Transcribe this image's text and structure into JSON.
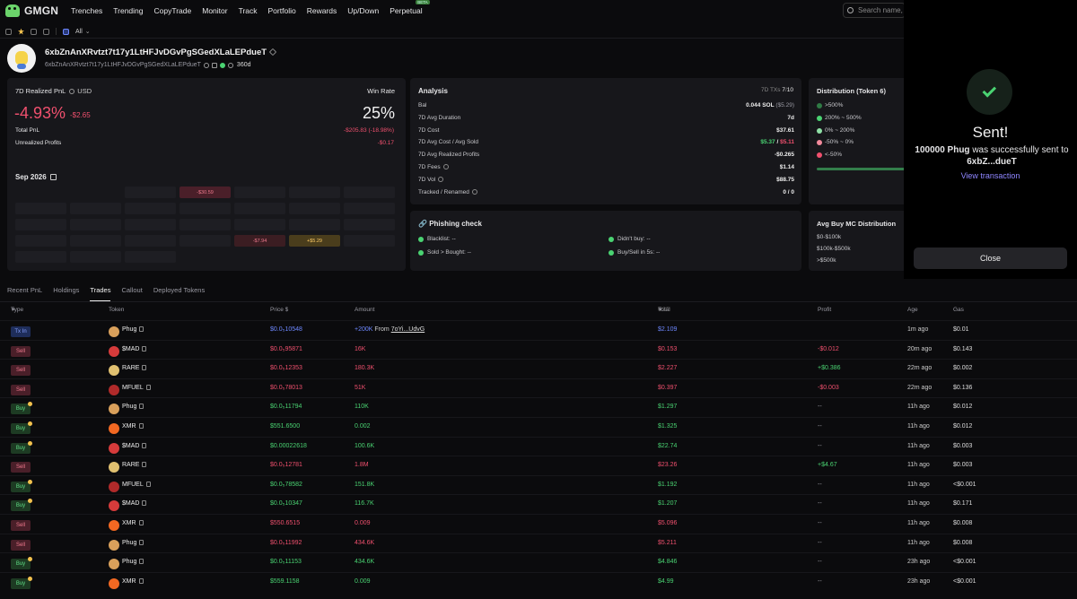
{
  "nav": {
    "logo": "GMGN",
    "items": [
      "Trenches",
      "Trending",
      "CopyTrade",
      "Monitor",
      "Track",
      "Portfolio",
      "Rewards",
      "Up/Down",
      "Perpetual"
    ],
    "perpetual_badge": "BETA",
    "search_placeholder": "Search name, C"
  },
  "subbar": {
    "filter": "All"
  },
  "wallet": {
    "name": "6xbZnAnXRvtzt7t17y1LtHFJvDGvPgSGedXLaLEPdueT",
    "address": "6xbZnAnXRvtzt7t17y1LtHFJvDGvPgSGedXLaLEPdueT",
    "age": "360d"
  },
  "pnl": {
    "title": "7D Realized PnL",
    "currency": "USD",
    "percent": "-4.93%",
    "amount": "-$2.65",
    "winrate_label": "Win Rate",
    "winrate": "25%",
    "total_label": "Total PnL",
    "total_value": "-$205.83 (-18.98%)",
    "unrealized_label": "Unrealized Profits",
    "unrealized_value": "-$0.17"
  },
  "calendar": {
    "title": "Sep 2026",
    "cells": [
      {
        "kind": "empty",
        "text": ""
      },
      {
        "kind": "empty",
        "text": ""
      },
      {
        "kind": "day",
        "text": ""
      },
      {
        "kind": "neg",
        "text": "-$30.59"
      },
      {
        "kind": "day",
        "text": ""
      },
      {
        "kind": "day",
        "text": ""
      },
      {
        "kind": "day",
        "text": ""
      },
      {
        "kind": "day",
        "text": ""
      },
      {
        "kind": "day",
        "text": ""
      },
      {
        "kind": "day",
        "text": ""
      },
      {
        "kind": "day",
        "text": ""
      },
      {
        "kind": "day",
        "text": ""
      },
      {
        "kind": "day",
        "text": ""
      },
      {
        "kind": "day",
        "text": ""
      },
      {
        "kind": "day",
        "text": ""
      },
      {
        "kind": "day",
        "text": ""
      },
      {
        "kind": "day",
        "text": ""
      },
      {
        "kind": "day",
        "text": ""
      },
      {
        "kind": "day",
        "text": ""
      },
      {
        "kind": "day",
        "text": ""
      },
      {
        "kind": "day",
        "text": ""
      },
      {
        "kind": "day",
        "text": ""
      },
      {
        "kind": "day",
        "text": ""
      },
      {
        "kind": "day",
        "text": ""
      },
      {
        "kind": "day",
        "text": ""
      },
      {
        "kind": "negd",
        "text": "-$7.94"
      },
      {
        "kind": "pos",
        "text": "+$5.29"
      },
      {
        "kind": "day",
        "text": ""
      },
      {
        "kind": "day",
        "text": ""
      },
      {
        "kind": "day",
        "text": ""
      },
      {
        "kind": "day",
        "text": ""
      },
      {
        "kind": "empty",
        "text": ""
      },
      {
        "kind": "empty",
        "text": ""
      },
      {
        "kind": "empty",
        "text": ""
      },
      {
        "kind": "empty",
        "text": ""
      }
    ]
  },
  "analysis": {
    "title": "Analysis",
    "tx_prefix": "7D TXs",
    "tx_buy": "7",
    "tx_sell": "10",
    "rows": [
      {
        "label": "Bal",
        "value": "0.044 SOL",
        "extra": "($5.29)"
      },
      {
        "label": "7D Avg Duration",
        "value": "7d"
      },
      {
        "label": "7D Cost",
        "value": "$37.61"
      },
      {
        "label": "7D Avg Cost / Avg Sold",
        "value_g": "$5.37",
        "value_r": "$5.11"
      },
      {
        "label": "7D Avg Realized Profits",
        "value_r": "-$0.265"
      },
      {
        "label": "7D Fees",
        "value": "$1.14"
      },
      {
        "label": "7D Vol",
        "value": "$88.75"
      },
      {
        "label": "Tracked / Renamed",
        "value": "0 / 0"
      }
    ]
  },
  "phishing": {
    "title": "Phishing check",
    "items": [
      {
        "label": "Blacklist:",
        "value": "--"
      },
      {
        "label": "Didn't buy:",
        "value": "--"
      },
      {
        "label": "Sold > Bought:",
        "value": "--"
      },
      {
        "label": "Buy/Sell in 5s:",
        "value": "--"
      }
    ]
  },
  "distribution": {
    "title": "Distribution (Token 6)",
    "items": [
      {
        "label": ">500%",
        "color": "#2f7a45"
      },
      {
        "label": "200% ~ 500%",
        "color": "#4ad372"
      },
      {
        "label": "0% ~ 200%",
        "color": "#8fe0a6"
      },
      {
        "label": "-50% ~ 0%",
        "color": "#f28a9c"
      },
      {
        "label": "<-50%",
        "color": "#f0506e"
      }
    ]
  },
  "avg_mc": {
    "title": "Avg Buy MC Distribution",
    "items": [
      "$0-$100k",
      "$100k-$500k",
      ">$500k"
    ]
  },
  "tabs": [
    "Recent PnL",
    "Holdings",
    "Trades",
    "Callout",
    "Deployed Tokens"
  ],
  "table": {
    "headers": {
      "type": "Type",
      "token": "Token",
      "price": "Price $",
      "amount": "Amount",
      "total": "Total",
      "total_unit": "USD",
      "profit": "Profit",
      "age": "Age",
      "gas": "Gas"
    },
    "rows": [
      {
        "type": "Tx In",
        "kind": "txin",
        "token": "Phug",
        "icon": "#d9a05b",
        "price": "$0.0₅10548",
        "amount": "+200K",
        "from_label": "From",
        "from": "7oYi...UdvG",
        "total": "$2.109",
        "total_color": "blue",
        "profit": "",
        "profit_color": "",
        "age": "1m ago",
        "gas": "$0.01"
      },
      {
        "type": "Sell",
        "kind": "sell",
        "token": "$MAD",
        "icon": "#d63b3b",
        "price": "$0.0₅95871",
        "amount": "16K",
        "total": "$0.153",
        "profit": "-$0.012",
        "profit_color": "r",
        "age": "20m ago",
        "gas": "$0.143"
      },
      {
        "type": "Sell",
        "kind": "sell",
        "token": "RARE",
        "icon": "#e0c070",
        "price": "$0.0₅12353",
        "amount": "180.3K",
        "total": "$2.227",
        "profit": "+$0.386",
        "profit_color": "g",
        "age": "22m ago",
        "gas": "$0.002"
      },
      {
        "type": "Sell",
        "kind": "sell",
        "token": "MFUEL",
        "icon": "#b02a2a",
        "price": "$0.0₅78013",
        "amount": "51K",
        "total": "$0.397",
        "profit": "-$0.003",
        "profit_color": "r",
        "age": "22m ago",
        "gas": "$0.136"
      },
      {
        "type": "Buy",
        "kind": "buy",
        "token": "Phug",
        "icon": "#d9a05b",
        "price": "$0.0₅11794",
        "amount": "110K",
        "total": "$1.297",
        "profit": "--",
        "profit_color": "mut",
        "age": "11h ago",
        "gas": "$0.012"
      },
      {
        "type": "Buy",
        "kind": "buy",
        "token": "XMR",
        "icon": "#f26822",
        "price": "$551.6500",
        "amount": "0.002",
        "total": "$1.325",
        "profit": "--",
        "profit_color": "mut",
        "age": "11h ago",
        "gas": "$0.012"
      },
      {
        "type": "Buy",
        "kind": "buy",
        "token": "$MAD",
        "icon": "#d63b3b",
        "price": "$0.00022618",
        "amount": "100.6K",
        "total": "$22.74",
        "profit": "--",
        "profit_color": "mut",
        "age": "11h ago",
        "gas": "$0.003"
      },
      {
        "type": "Sell",
        "kind": "sell",
        "token": "RARE",
        "icon": "#e0c070",
        "price": "$0.0₅12781",
        "amount": "1.8M",
        "total": "$23.26",
        "profit": "+$4.67",
        "profit_color": "g",
        "age": "11h ago",
        "gas": "$0.003"
      },
      {
        "type": "Buy",
        "kind": "buy",
        "token": "MFUEL",
        "icon": "#b02a2a",
        "price": "$0.0₅78582",
        "amount": "151.8K",
        "total": "$1.192",
        "profit": "--",
        "profit_color": "mut",
        "age": "11h ago",
        "gas": "<$0.001"
      },
      {
        "type": "Buy",
        "kind": "buy",
        "token": "$MAD",
        "icon": "#d63b3b",
        "price": "$0.0₅10347",
        "amount": "116.7K",
        "total": "$1.207",
        "profit": "--",
        "profit_color": "mut",
        "age": "11h ago",
        "gas": "$0.171"
      },
      {
        "type": "Sell",
        "kind": "sell",
        "token": "XMR",
        "icon": "#f26822",
        "price": "$550.6515",
        "amount": "0.009",
        "total": "$5.096",
        "profit": "--",
        "profit_color": "mut",
        "age": "11h ago",
        "gas": "$0.008"
      },
      {
        "type": "Sell",
        "kind": "sell",
        "token": "Phug",
        "icon": "#d9a05b",
        "price": "$0.0₅11992",
        "amount": "434.6K",
        "total": "$5.211",
        "profit": "--",
        "profit_color": "mut",
        "age": "11h ago",
        "gas": "$0.008"
      },
      {
        "type": "Buy",
        "kind": "buy",
        "token": "Phug",
        "icon": "#d9a05b",
        "price": "$0.0₅11153",
        "amount": "434.6K",
        "total": "$4.846",
        "profit": "--",
        "profit_color": "mut",
        "age": "23h ago",
        "gas": "<$0.001"
      },
      {
        "type": "Buy",
        "kind": "buy",
        "token": "XMR",
        "icon": "#f26822",
        "price": "$559.1158",
        "amount": "0.009",
        "total": "$4.99",
        "profit": "--",
        "profit_color": "mut",
        "age": "23h ago",
        "gas": "<$0.001"
      }
    ]
  },
  "toast": {
    "title": "Sent!",
    "amount": "100000 Phug",
    "msg_mid": "was successfully sent to",
    "dest": "6xbZ...dueT",
    "link": "View transaction",
    "close": "Close"
  }
}
